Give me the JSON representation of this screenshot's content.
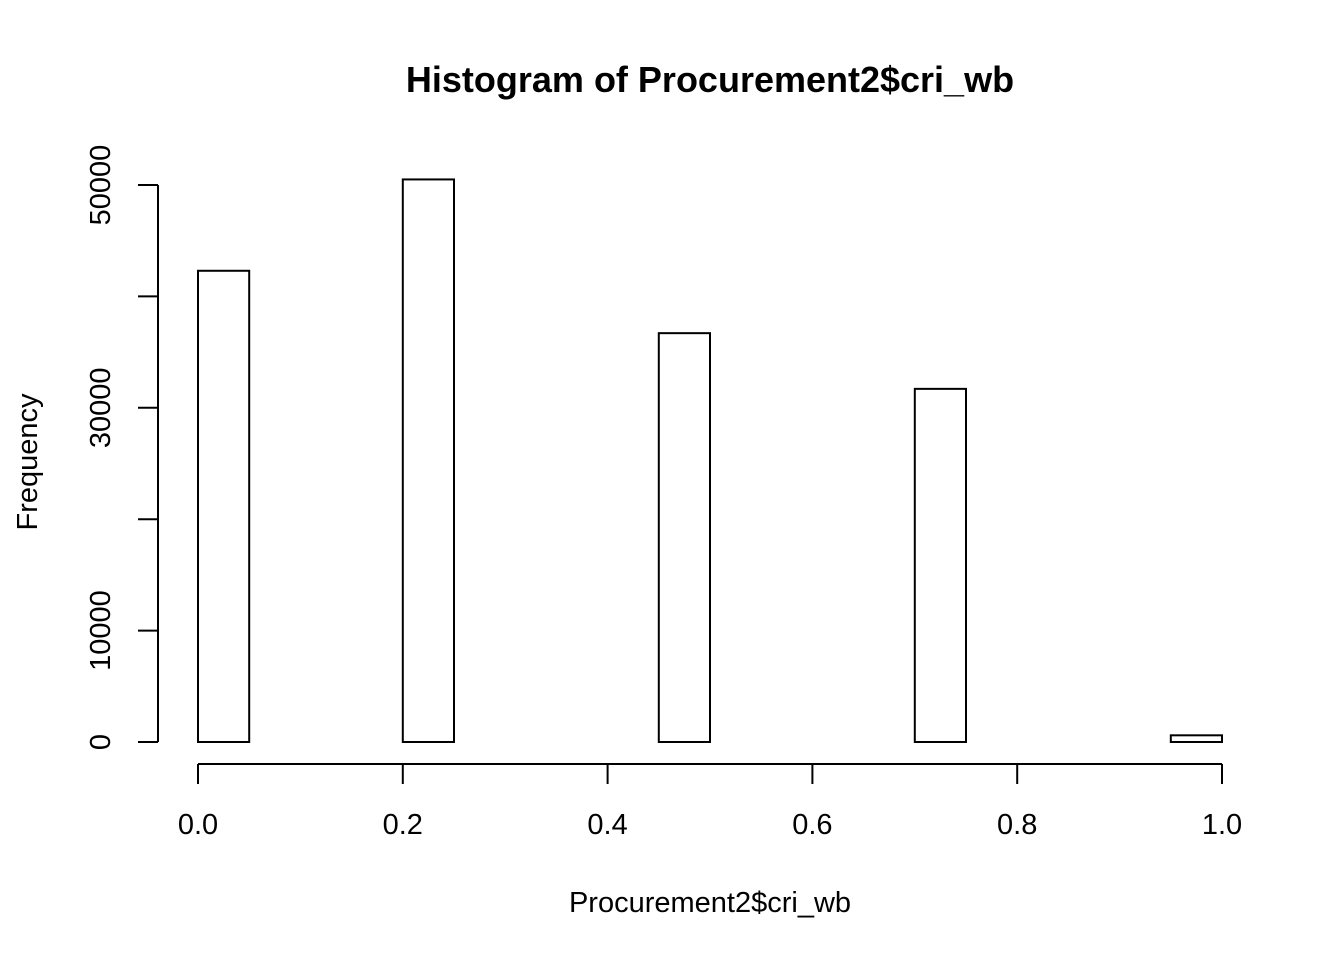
{
  "chart_data": {
    "type": "bar",
    "title": "Histogram of Procurement2$cri_wb",
    "xlabel": "Procurement2$cri_wb",
    "ylabel": "Frequency",
    "xlim": [
      0,
      1
    ],
    "ylim": [
      0,
      50000
    ],
    "x_ticks": [
      "0.0",
      "0.2",
      "0.4",
      "0.6",
      "0.8",
      "1.0"
    ],
    "y_ticks": [
      "0",
      "10000",
      "30000",
      "50000"
    ],
    "bins": [
      {
        "x0": 0.0,
        "x1": 0.05,
        "count": 42300
      },
      {
        "x0": 0.05,
        "x1": 0.1,
        "count": 0
      },
      {
        "x0": 0.1,
        "x1": 0.15,
        "count": 0
      },
      {
        "x0": 0.15,
        "x1": 0.2,
        "count": 0
      },
      {
        "x0": 0.2,
        "x1": 0.25,
        "count": 50500
      },
      {
        "x0": 0.25,
        "x1": 0.3,
        "count": 0
      },
      {
        "x0": 0.3,
        "x1": 0.35,
        "count": 0
      },
      {
        "x0": 0.35,
        "x1": 0.4,
        "count": 0
      },
      {
        "x0": 0.4,
        "x1": 0.45,
        "count": 0
      },
      {
        "x0": 0.45,
        "x1": 0.5,
        "count": 36700
      },
      {
        "x0": 0.5,
        "x1": 0.55,
        "count": 0
      },
      {
        "x0": 0.55,
        "x1": 0.6,
        "count": 0
      },
      {
        "x0": 0.6,
        "x1": 0.65,
        "count": 0
      },
      {
        "x0": 0.65,
        "x1": 0.7,
        "count": 0
      },
      {
        "x0": 0.7,
        "x1": 0.75,
        "count": 31700
      },
      {
        "x0": 0.75,
        "x1": 0.8,
        "count": 0
      },
      {
        "x0": 0.8,
        "x1": 0.85,
        "count": 0
      },
      {
        "x0": 0.85,
        "x1": 0.9,
        "count": 0
      },
      {
        "x0": 0.9,
        "x1": 0.95,
        "count": 0
      },
      {
        "x0": 0.95,
        "x1": 1.0,
        "count": 600
      }
    ],
    "grid": false,
    "colors": {
      "bar_fill": "#ffffff",
      "bar_stroke": "#000000"
    }
  }
}
